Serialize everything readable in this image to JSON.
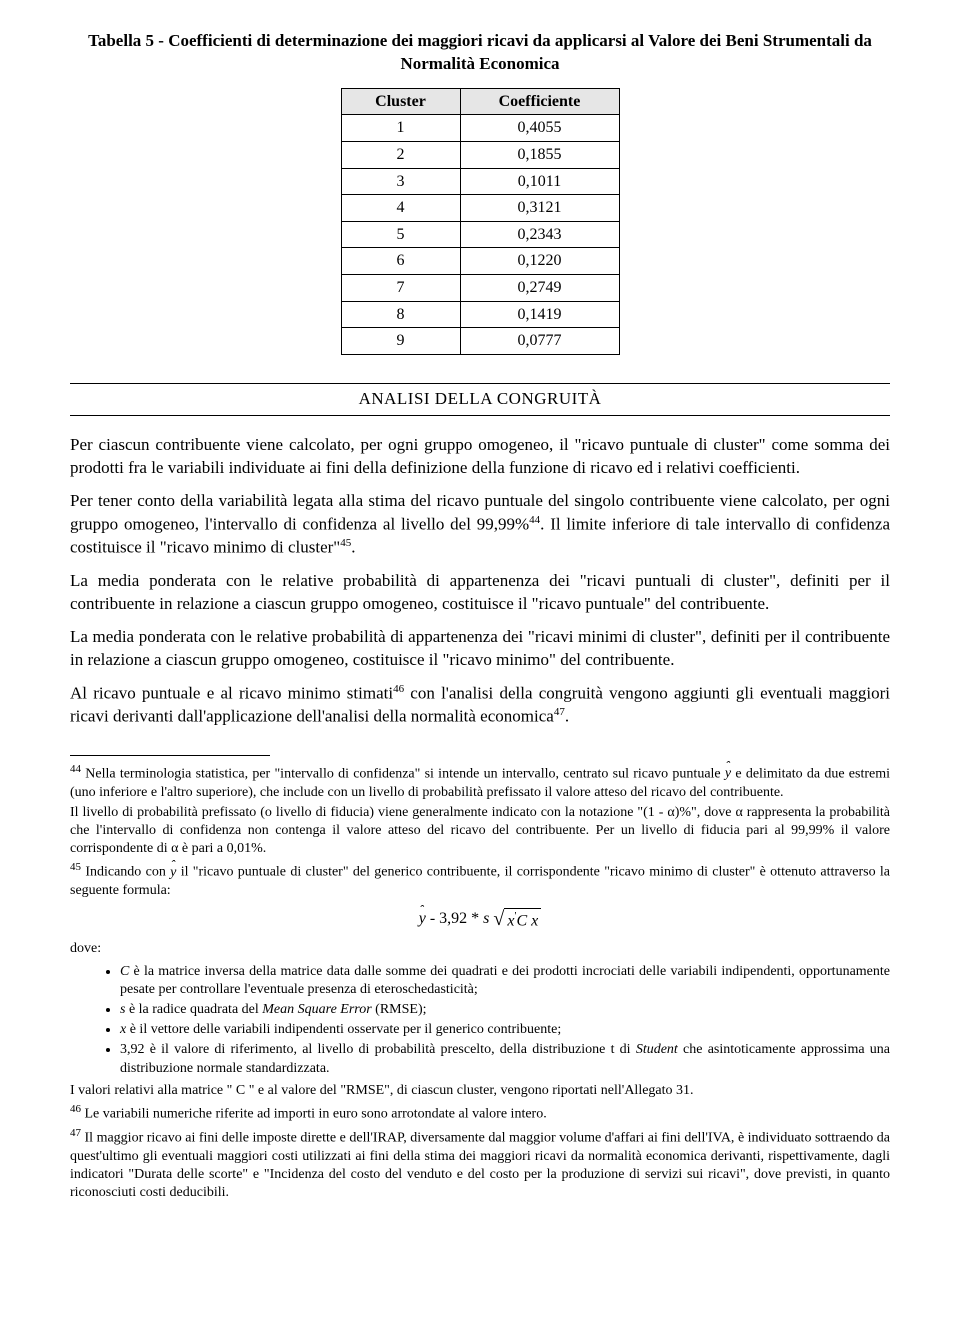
{
  "table": {
    "title": "Tabella 5 - Coefficienti di determinazione dei maggiori ricavi da applicarsi al Valore dei Beni Strumentali da Normalità Economica",
    "headers": {
      "cluster": "Cluster",
      "coeff": "Coefficiente"
    },
    "rows": [
      {
        "cluster": "1",
        "value": "0,4055"
      },
      {
        "cluster": "2",
        "value": "0,1855"
      },
      {
        "cluster": "3",
        "value": "0,1011"
      },
      {
        "cluster": "4",
        "value": "0,3121"
      },
      {
        "cluster": "5",
        "value": "0,2343"
      },
      {
        "cluster": "6",
        "value": "0,1220"
      },
      {
        "cluster": "7",
        "value": "0,2749"
      },
      {
        "cluster": "8",
        "value": "0,1419"
      },
      {
        "cluster": "9",
        "value": "0,0777"
      }
    ]
  },
  "section_header": "ANALISI DELLA CONGRUITÀ",
  "paragraphs": {
    "p1": "Per ciascun contribuente viene calcolato, per ogni gruppo omogeneo, il \"ricavo puntuale di cluster\" come somma dei prodotti fra le variabili individuate ai fini della definizione della funzione di ricavo ed i relativi coefficienti.",
    "p2a": "Per tener conto della variabilità legata alla stima del ricavo puntuale del singolo contribuente viene calcolato, per ogni gruppo omogeneo, l'intervallo di confidenza al livello del 99,99%",
    "p2b": ". Il limite inferiore di tale intervallo di confidenza costituisce il \"ricavo minimo di cluster\"",
    "p2c": ".",
    "p3": "La media ponderata con le relative probabilità di appartenenza dei \"ricavi puntuali di cluster\", definiti per il contribuente in relazione a ciascun gruppo omogeneo, costituisce il \"ricavo puntuale\" del contribuente.",
    "p4": "La media ponderata con le relative probabilità di appartenenza dei \"ricavi minimi di cluster\", definiti per il contribuente in relazione a ciascun gruppo omogeneo, costituisce il \"ricavo minimo\" del contribuente.",
    "p5a": "Al ricavo puntuale e al ricavo minimo stimati",
    "p5b": " con l'analisi della congruità vengono aggiunti gli eventuali maggiori ricavi derivanti dall'applicazione dell'analisi della normalità economica",
    "p5c": "."
  },
  "refs": {
    "r44": "44",
    "r45": "45",
    "r46": "46",
    "r47": "47"
  },
  "footnotes": {
    "f44a": " Nella terminologia statistica, per \"intervallo di confidenza\" si intende un intervallo, centrato sul ricavo puntuale ",
    "f44b": " e delimitato da due estremi (uno inferiore e l'altro superiore), che include con un livello di probabilità prefissato il valore atteso del ricavo del contribuente.",
    "f44c": "Il livello di probabilità prefissato (o livello di fiducia) viene generalmente indicato con la notazione \"(1 - α)%\", dove α rappresenta la probabilità che l'intervallo di confidenza non contenga il valore atteso del ricavo del contribuente. Per un livello di fiducia pari al 99,99% il valore corrispondente di α è pari a 0,01%.",
    "f45a": " Indicando con ",
    "f45b": " il \"ricavo puntuale di cluster\" del generico contribuente, il corrispondente \"ricavo minimo di cluster\" è ottenuto attraverso la seguente formula:",
    "dove": "dove:",
    "li1a": " è la matrice inversa della matrice data dalle somme dei quadrati e dei prodotti incrociati delle variabili indipendenti, opportunamente pesate per controllare l'eventuale presenza di eteroschedasticità;",
    "li2a": " è la radice quadrata del ",
    "li2b": " (RMSE);",
    "li3a": " è il vettore delle variabili indipendenti osservate per  il generico contribuente;",
    "li4a": "3,92 è il valore di riferimento, al livello di probabilità prescelto, della distribuzione t di ",
    "li4b": " che asintoticamente approssima una distribuzione normale standardizzata.",
    "f45end": "I valori relativi alla matrice \" C \" e al valore del \"RMSE\", di ciascun cluster, vengono riportati nell'Allegato 31.",
    "f46": " Le variabili numeriche riferite ad importi in euro sono arrotondate al valore intero.",
    "f47": " Il maggior ricavo ai fini delle imposte dirette e dell'IRAP, diversamente dal maggior volume d'affari ai fini dell'IVA, è individuato sottraendo da quest'ultimo gli eventuali maggiori costi utilizzati ai fini della stima dei maggiori ricavi da normalità economica derivanti, rispettivamente, dagli indicatori \"Durata delle scorte\" e \"Incidenza del costo del venduto e del costo per la produzione di servizi sui ricavi\", dove previsti, in quanto riconosciuti costi deducibili."
  },
  "formula": {
    "lhs": "y",
    "minus": " - 3,92 * ",
    "s": "s",
    "under_sqrt_x1": "x",
    "under_sqrt_C": "C",
    "under_sqrt_x2": "x",
    "prime": "'"
  },
  "italic": {
    "C": "C",
    "s": "s",
    "x": "x",
    "mse": "Mean Square Error",
    "student": "Student",
    "yhat": "y"
  }
}
